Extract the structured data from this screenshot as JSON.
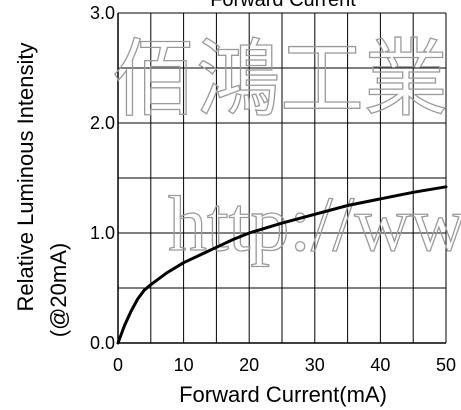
{
  "chart_data": {
    "type": "line",
    "title": "Forward Current",
    "xlabel": "Forward Current(mA)",
    "ylabel_lines": [
      "Relative Luminous Intensity",
      "(@20mA)"
    ],
    "xlim": [
      0,
      50
    ],
    "ylim": [
      0,
      3.0
    ],
    "x_ticks": [
      0,
      10,
      20,
      30,
      40,
      50
    ],
    "y_ticks": [
      0.0,
      1.0,
      2.0,
      3.0
    ],
    "x_tick_labels": [
      "0",
      "10",
      "20",
      "30",
      "40",
      "50"
    ],
    "y_tick_labels": [
      "0.0",
      "1.0",
      "2.0",
      "3.0"
    ],
    "grid": true,
    "grid_x_step": 5,
    "grid_y_step": 0.5,
    "series": [
      {
        "x": [
          0,
          1,
          2,
          3,
          4,
          5,
          7.5,
          10,
          12.5,
          15,
          17.5,
          20,
          25,
          30,
          35,
          40,
          45,
          50
        ],
        "y": [
          0,
          0.16,
          0.29,
          0.4,
          0.48,
          0.53,
          0.64,
          0.73,
          0.8,
          0.87,
          0.94,
          1.0,
          1.09,
          1.17,
          1.25,
          1.31,
          1.37,
          1.42
        ],
        "color": "#000000"
      }
    ]
  },
  "watermark": {
    "cjk_text": "佰鴻工業",
    "url_text": "http://ww"
  }
}
